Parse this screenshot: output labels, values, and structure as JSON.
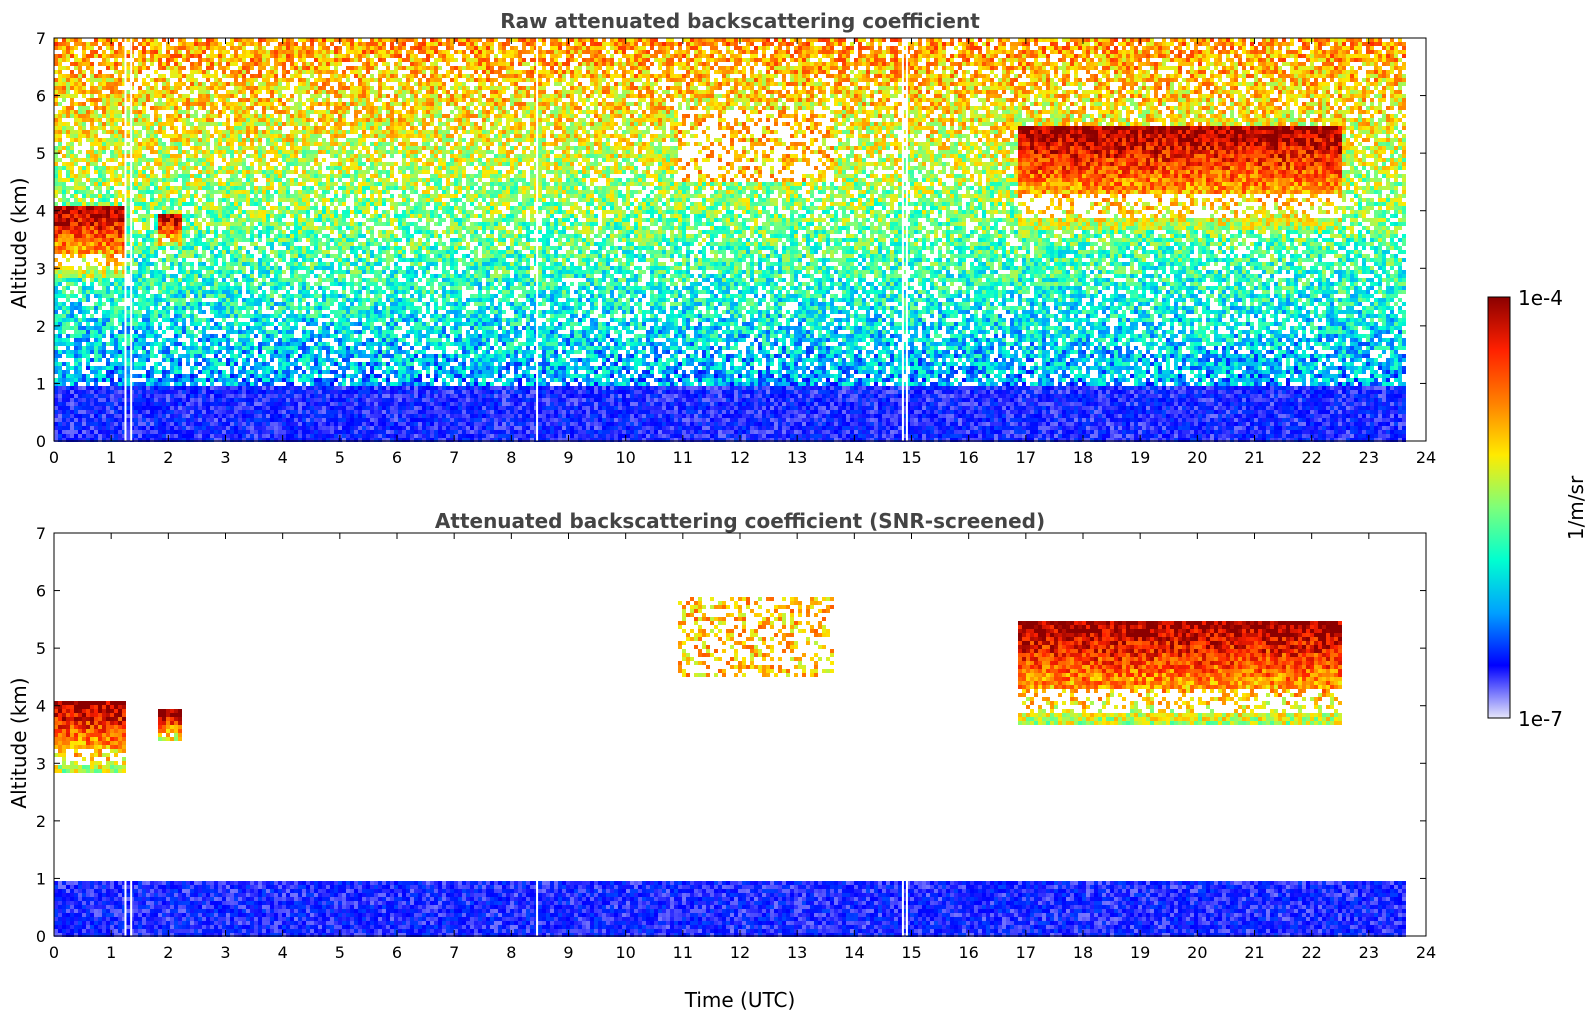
{
  "chart_data": [
    {
      "type": "heatmap",
      "title": "Raw attenuated backscattering coefficient",
      "xlabel": "",
      "ylabel": "Altitude (km)",
      "xlim": [
        0,
        24
      ],
      "ylim": [
        0,
        7
      ],
      "xticks": [
        "0",
        "1",
        "2",
        "3",
        "4",
        "5",
        "6",
        "7",
        "8",
        "9",
        "10",
        "11",
        "12",
        "13",
        "14",
        "15",
        "16",
        "17",
        "18",
        "19",
        "20",
        "21",
        "22",
        "23",
        "24"
      ],
      "yticks": [
        "0",
        "1",
        "2",
        "3",
        "4",
        "5",
        "6",
        "7"
      ],
      "data_end_time": 23.65,
      "data_gaps_time": [
        1.25,
        1.35,
        8.45,
        14.85,
        14.92
      ],
      "features": [
        {
          "kind": "cloud",
          "time_start": 0.0,
          "time_end": 1.2,
          "alt_bottom": 2.9,
          "alt_top": 4.1,
          "intensity": "high"
        },
        {
          "kind": "cloud",
          "time_start": 1.8,
          "time_end": 2.2,
          "alt_bottom": 3.4,
          "alt_top": 3.95,
          "intensity": "high"
        },
        {
          "kind": "cloud",
          "time_start": 16.8,
          "time_end": 22.5,
          "alt_bottom": 3.7,
          "alt_top": 5.5,
          "intensity": "high"
        },
        {
          "kind": "aerosol",
          "time_start": 10.9,
          "time_end": 13.6,
          "alt_bottom": 4.5,
          "alt_top": 5.8,
          "intensity": "medium"
        },
        {
          "kind": "boundary_layer",
          "time_start": 0.0,
          "time_end": 23.65,
          "alt_bottom": 0.0,
          "alt_top": 1.0,
          "intensity": "low"
        }
      ]
    },
    {
      "type": "heatmap",
      "title": "Attenuated backscattering coefficient (SNR-screened)",
      "xlabel": "Time (UTC)",
      "ylabel": "Altitude (km)",
      "xlim": [
        0,
        24
      ],
      "ylim": [
        0,
        7
      ],
      "xticks": [
        "0",
        "1",
        "2",
        "3",
        "4",
        "5",
        "6",
        "7",
        "8",
        "9",
        "10",
        "11",
        "12",
        "13",
        "14",
        "15",
        "16",
        "17",
        "18",
        "19",
        "20",
        "21",
        "22",
        "23",
        "24"
      ],
      "yticks": [
        "0",
        "1",
        "2",
        "3",
        "4",
        "5",
        "6",
        "7"
      ],
      "data_end_time": 23.65,
      "data_gaps_time": [
        1.25,
        1.35,
        8.45,
        14.85,
        14.92
      ],
      "features": [
        {
          "kind": "cloud",
          "time_start": 0.0,
          "time_end": 1.2,
          "alt_bottom": 2.9,
          "alt_top": 4.1,
          "intensity": "high"
        },
        {
          "kind": "cloud",
          "time_start": 1.8,
          "time_end": 2.2,
          "alt_bottom": 3.4,
          "alt_top": 3.95,
          "intensity": "high"
        },
        {
          "kind": "cloud",
          "time_start": 16.8,
          "time_end": 22.5,
          "alt_bottom": 3.7,
          "alt_top": 5.5,
          "intensity": "high"
        },
        {
          "kind": "aerosol",
          "time_start": 10.9,
          "time_end": 13.6,
          "alt_bottom": 4.5,
          "alt_top": 5.9,
          "intensity": "medium"
        },
        {
          "kind": "boundary_layer",
          "time_start": 0.0,
          "time_end": 23.65,
          "alt_bottom": 0.0,
          "alt_top": 1.0,
          "intensity": "low"
        }
      ]
    }
  ],
  "colorbar": {
    "label": "1/m/sr",
    "min_label": "1e-7",
    "max_label": "1e-4",
    "scale": "log",
    "min": 1e-07,
    "max": 0.0001,
    "colormap": "jet",
    "colors": [
      "#e6e6fa",
      "#0000ff",
      "#00a0ff",
      "#00ffd0",
      "#7dff7a",
      "#ffea00",
      "#ff8000",
      "#ff2000",
      "#8b0000"
    ]
  }
}
